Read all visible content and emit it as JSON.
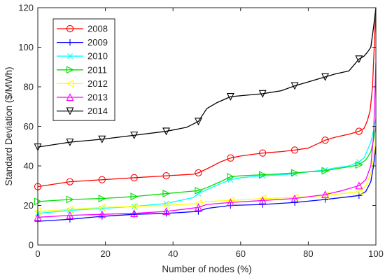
{
  "chart_data": {
    "type": "line",
    "title": "",
    "xlabel": "Number of nodes (%)",
    "ylabel": "Standard Deviation ($/MWh)",
    "xlim": [
      0,
      100
    ],
    "ylim": [
      0,
      120
    ],
    "xticks": [
      "0",
      "20",
      "40",
      "60",
      "80",
      "100"
    ],
    "yticks": [
      "0",
      "20",
      "40",
      "60",
      "80",
      "100",
      "120"
    ],
    "grid": false,
    "legend_position": "top-left",
    "series": [
      {
        "name": "2008",
        "color": "#ff0000",
        "marker": "circle",
        "x": [
          0,
          9.5,
          19,
          28.5,
          38,
          46,
          47.5,
          50,
          54,
          57,
          60,
          66.5,
          72,
          76,
          80,
          85,
          88,
          92,
          95,
          96.5,
          97.5,
          98.3,
          99,
          99.5,
          100
        ],
        "y": [
          29.5,
          32,
          33,
          34,
          35,
          35.8,
          36.5,
          38.5,
          42,
          44,
          45,
          46.5,
          47.2,
          48,
          49,
          53,
          54.5,
          56,
          57.5,
          59,
          63,
          68,
          80,
          100,
          120
        ],
        "marker_x": [
          0,
          9.5,
          19,
          28.5,
          38,
          47.5,
          57,
          66.5,
          76,
          85,
          95
        ]
      },
      {
        "name": "2009",
        "color": "#0000ff",
        "marker": "plus",
        "x": [
          0,
          9.5,
          19,
          28.5,
          38,
          47.5,
          50,
          57,
          66.5,
          76,
          85,
          90,
          95,
          97,
          98.5,
          99.3,
          100
        ],
        "y": [
          12,
          13,
          14.5,
          15.5,
          16,
          17,
          18.5,
          20,
          20.5,
          21.5,
          23,
          24,
          25,
          27,
          32,
          40,
          50
        ],
        "marker_x": [
          0,
          9.5,
          19,
          28.5,
          38,
          47.5,
          57,
          66.5,
          76,
          85,
          95
        ]
      },
      {
        "name": "2010",
        "color": "#00ffff",
        "marker": "x",
        "x": [
          0,
          9.5,
          19,
          28.5,
          38,
          46,
          47.5,
          50,
          54,
          57,
          60,
          66.5,
          72,
          76,
          80,
          85,
          88,
          92,
          95,
          96.5,
          97.5,
          98.5,
          99.3,
          100
        ],
        "y": [
          16,
          17.5,
          18.5,
          19.5,
          21,
          24,
          26,
          28,
          31,
          33,
          34,
          35,
          35.5,
          36,
          37,
          38,
          39,
          40,
          42,
          44,
          48,
          52,
          58,
          64
        ],
        "marker_x": [
          0,
          9.5,
          19,
          28.5,
          38,
          47.5,
          57,
          66.5,
          76,
          85,
          95
        ]
      },
      {
        "name": "2011",
        "color": "#00dd00",
        "marker": "triangle-right",
        "x": [
          0,
          9.5,
          19,
          28.5,
          38,
          47.5,
          50,
          54,
          57,
          60,
          66.5,
          72,
          76,
          80,
          85,
          88,
          92,
          95,
          97,
          98.5,
          99.3,
          100
        ],
        "y": [
          22,
          23,
          23.5,
          24.5,
          26,
          27.5,
          29,
          32,
          34.5,
          35,
          35.5,
          36,
          36.5,
          37,
          37.5,
          38.5,
          39.5,
          40.5,
          43,
          47,
          53,
          60
        ],
        "marker_x": [
          0,
          9.5,
          19,
          28.5,
          38,
          47.5,
          57,
          66.5,
          76,
          85,
          95
        ]
      },
      {
        "name": "2012",
        "color": "#ffff00",
        "marker": "triangle-left",
        "x": [
          0,
          9.5,
          19,
          28.5,
          38,
          47.5,
          50,
          57,
          66.5,
          76,
          85,
          90,
          95,
          97,
          98.5,
          99.3,
          100
        ],
        "y": [
          17,
          18,
          19,
          19.5,
          20,
          21,
          22,
          22.5,
          23.5,
          24,
          25,
          26,
          27,
          30,
          36,
          44,
          55
        ],
        "marker_x": [
          0,
          9.5,
          19,
          28.5,
          38,
          47.5,
          57,
          66.5,
          76,
          85,
          95
        ]
      },
      {
        "name": "2013",
        "color": "#ff00ff",
        "marker": "triangle-up",
        "x": [
          0,
          9.5,
          19,
          28.5,
          38,
          47.5,
          50,
          57,
          66.5,
          76,
          85,
          90,
          95,
          97,
          98.5,
          99.3,
          100
        ],
        "y": [
          14,
          15,
          15.5,
          16,
          17,
          19,
          20.5,
          21.5,
          22.5,
          23.5,
          25.5,
          27.5,
          30,
          33,
          40,
          55,
          92
        ],
        "marker_x": [
          0,
          9.5,
          19,
          28.5,
          38,
          47.5,
          57,
          66.5,
          76,
          85,
          95
        ]
      },
      {
        "name": "2014",
        "color": "#000000",
        "marker": "triangle-down",
        "x": [
          0,
          9.5,
          19,
          28.5,
          38,
          44,
          47.5,
          50,
          53,
          57,
          60,
          66.5,
          72,
          76,
          80,
          85,
          88,
          92,
          95,
          96.5,
          97.5,
          98.5,
          99.3,
          100
        ],
        "y": [
          49.5,
          52,
          53.5,
          55.5,
          57.5,
          59.5,
          62.5,
          69,
          72,
          75,
          75.5,
          76.5,
          78,
          80.5,
          82.5,
          85,
          86.5,
          88,
          94,
          95.5,
          97.5,
          100,
          110,
          120
        ],
        "marker_x": [
          0,
          9.5,
          19,
          28.5,
          38,
          47.5,
          57,
          66.5,
          76,
          85,
          95
        ]
      }
    ]
  }
}
